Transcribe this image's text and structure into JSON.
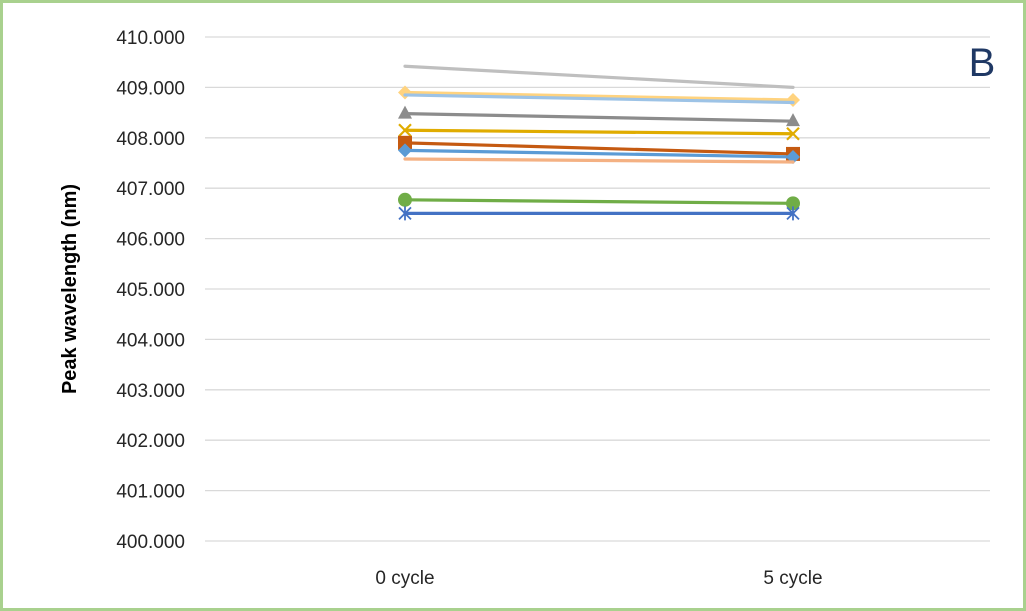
{
  "panel_label": "B",
  "chart_data": {
    "type": "line",
    "title": "",
    "xlabel": "",
    "ylabel": "Peak wavelength (nm)",
    "categories": [
      "0 cycle",
      "5 cycle"
    ],
    "ylim": [
      400,
      410
    ],
    "ytick_step": 1,
    "ytick_labels": [
      "400.000",
      "401.000",
      "402.000",
      "403.000",
      "404.000",
      "405.000",
      "406.000",
      "407.000",
      "408.000",
      "409.000",
      "410.000"
    ],
    "grid": true,
    "legend": "none",
    "series": [
      {
        "values": [
          409.42,
          409.0
        ],
        "color": "#bfbfbf",
        "marker": "none"
      },
      {
        "values": [
          408.9,
          408.75
        ],
        "color": "#ffd37f",
        "marker": "diamond"
      },
      {
        "values": [
          408.85,
          408.7
        ],
        "color": "#9dc3e6",
        "marker": "none"
      },
      {
        "values": [
          408.48,
          408.33
        ],
        "color": "#8c8c8c",
        "marker": "triangle"
      },
      {
        "values": [
          408.15,
          408.08
        ],
        "color": "#e0ac00",
        "marker": "x"
      },
      {
        "values": [
          407.9,
          407.68
        ],
        "color": "#c55a11",
        "marker": "square"
      },
      {
        "values": [
          407.75,
          407.62
        ],
        "color": "#5b9bd5",
        "marker": "diamond"
      },
      {
        "values": [
          407.58,
          407.52
        ],
        "color": "#f4b183",
        "marker": "none"
      },
      {
        "values": [
          406.77,
          406.7
        ],
        "color": "#70ad47",
        "marker": "circle"
      },
      {
        "values": [
          406.5,
          406.5
        ],
        "color": "#4472c4",
        "marker": "star"
      }
    ]
  }
}
